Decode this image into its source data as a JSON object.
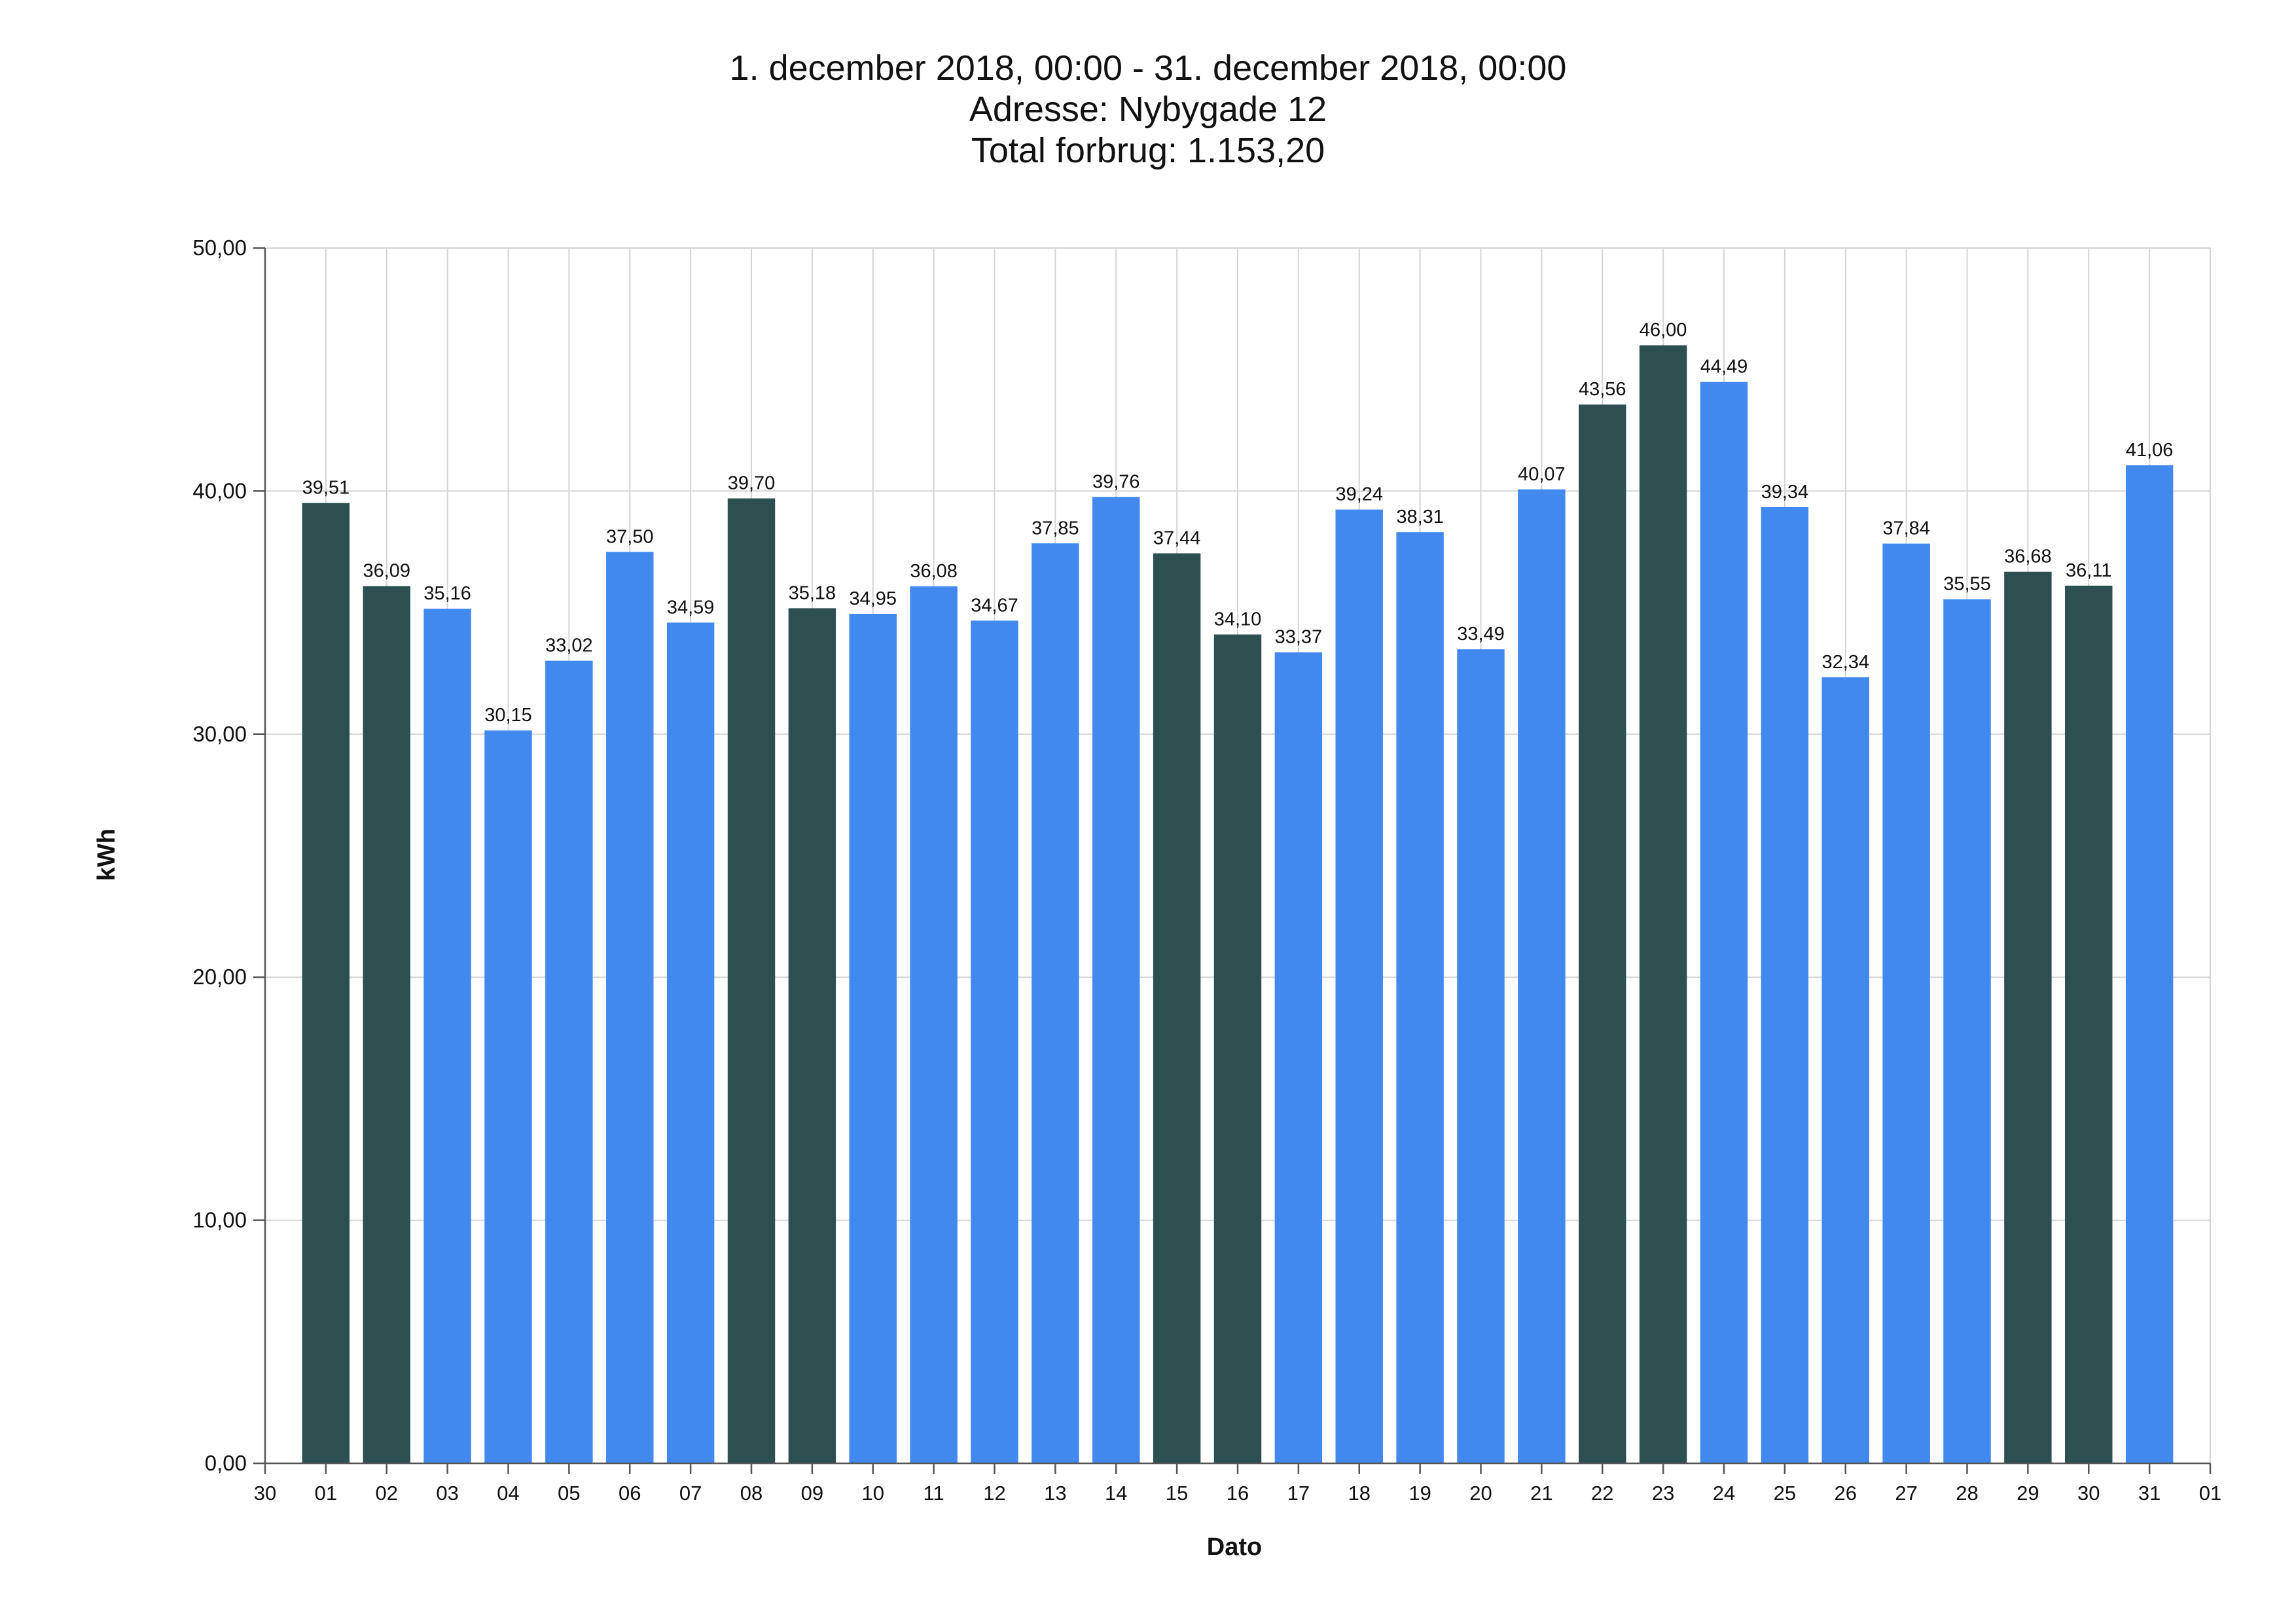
{
  "chart_data": {
    "type": "bar",
    "title_lines": [
      "1. december 2018, 00:00 - 31. december 2018, 00:00",
      "Adresse: Nybygade 12",
      "Total forbrug: 1.153,20"
    ],
    "xlabel": "Dato",
    "ylabel": "kWh",
    "ylim": [
      0,
      50
    ],
    "y_ticks": [
      "0,00",
      "10,00",
      "20,00",
      "30,00",
      "40,00",
      "50,00"
    ],
    "x_tick_labels": [
      "30",
      "01",
      "02",
      "03",
      "04",
      "05",
      "06",
      "07",
      "08",
      "09",
      "10",
      "11",
      "12",
      "13",
      "14",
      "15",
      "16",
      "17",
      "18",
      "19",
      "20",
      "21",
      "22",
      "23",
      "24",
      "25",
      "26",
      "27",
      "28",
      "29",
      "30",
      "31",
      "01"
    ],
    "categories": [
      "01",
      "02",
      "03",
      "04",
      "05",
      "06",
      "07",
      "08",
      "09",
      "10",
      "11",
      "12",
      "13",
      "14",
      "15",
      "16",
      "17",
      "18",
      "19",
      "20",
      "21",
      "22",
      "23",
      "24",
      "25",
      "26",
      "27",
      "28",
      "29",
      "30",
      "31"
    ],
    "values": [
      39.51,
      36.09,
      35.16,
      30.15,
      33.02,
      37.5,
      34.59,
      39.7,
      35.18,
      34.95,
      36.08,
      34.67,
      37.85,
      39.76,
      37.44,
      34.1,
      33.37,
      39.24,
      38.31,
      33.49,
      40.07,
      43.56,
      46.0,
      44.49,
      39.34,
      32.34,
      37.84,
      35.55,
      36.68,
      36.11,
      41.06
    ],
    "value_labels": [
      "39,51",
      "36,09",
      "35,16",
      "30,15",
      "33,02",
      "37,50",
      "34,59",
      "39,70",
      "35,18",
      "34,95",
      "36,08",
      "34,67",
      "37,85",
      "39,76",
      "37,44",
      "34,10",
      "33,37",
      "39,24",
      "38,31",
      "33,49",
      "40,07",
      "43,56",
      "46,00",
      "44,49",
      "39,34",
      "32,34",
      "37,84",
      "35,55",
      "36,68",
      "36,11",
      "41,06"
    ],
    "bar_kinds": [
      "weekend",
      "weekend",
      "weekday",
      "weekday",
      "weekday",
      "weekday",
      "weekday",
      "weekend",
      "weekend",
      "weekday",
      "weekday",
      "weekday",
      "weekday",
      "weekday",
      "weekend",
      "weekend",
      "weekday",
      "weekday",
      "weekday",
      "weekday",
      "weekday",
      "weekend",
      "weekend",
      "weekday",
      "weekday",
      "weekday",
      "weekday",
      "weekday",
      "weekend",
      "weekend",
      "weekday"
    ],
    "colors": {
      "weekday": "#4189ef",
      "weekend": "#2e4f4f"
    },
    "grid": true,
    "legend": "none"
  }
}
